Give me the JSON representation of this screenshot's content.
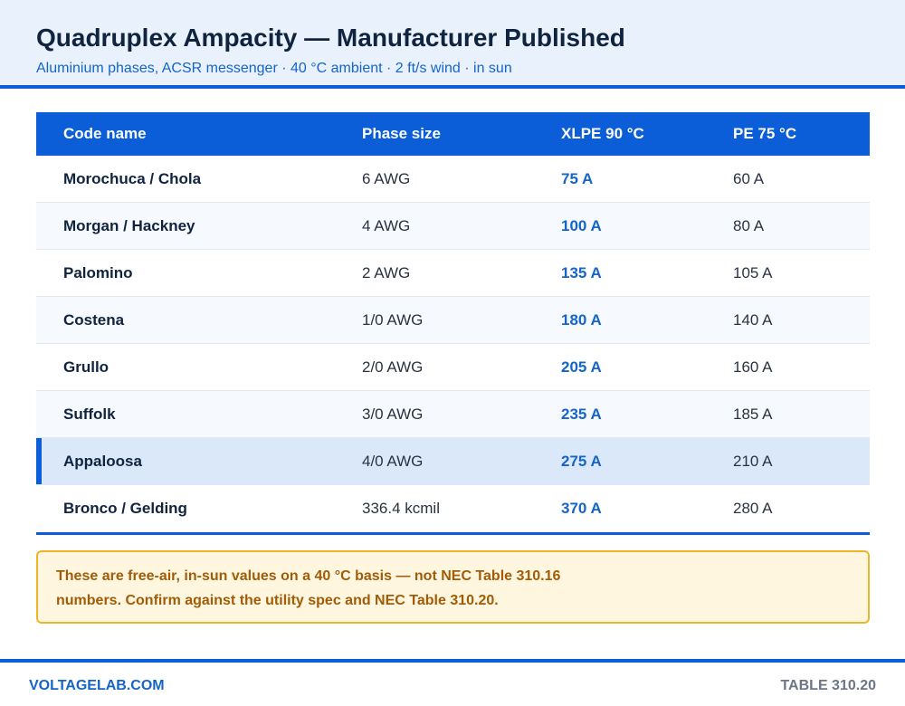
{
  "header": {
    "title": "Quadruplex Ampacity — Manufacturer Published",
    "subtitle": "Aluminium phases, ACSR messenger · 40 °C ambient · 2 ft/s wind · in sun"
  },
  "table": {
    "columns": [
      "Code name",
      "Phase size",
      "XLPE 90 °C",
      "PE 75 °C"
    ],
    "rows": [
      {
        "name": "Morochuca / Chola",
        "size": "6 AWG",
        "xlpe": "75 A",
        "pe": "60 A"
      },
      {
        "name": "Morgan / Hackney",
        "size": "4 AWG",
        "xlpe": "100 A",
        "pe": "80 A"
      },
      {
        "name": "Palomino",
        "size": "2 AWG",
        "xlpe": "135 A",
        "pe": "105 A"
      },
      {
        "name": "Costena",
        "size": "1/0 AWG",
        "xlpe": "180 A",
        "pe": "140 A"
      },
      {
        "name": "Grullo",
        "size": "2/0 AWG",
        "xlpe": "205 A",
        "pe": "160 A"
      },
      {
        "name": "Suffolk",
        "size": "3/0 AWG",
        "xlpe": "235 A",
        "pe": "185 A"
      },
      {
        "name": "Appaloosa",
        "size": "4/0 AWG",
        "xlpe": "275 A",
        "pe": "210 A"
      },
      {
        "name": "Bronco / Gelding",
        "size": "336.4 kcmil",
        "xlpe": "370 A",
        "pe": "280 A"
      }
    ]
  },
  "note": {
    "text": "These are free-air, in-sun values on a 40 °C basis — not NEC Table 310.16 numbers. Confirm against the utility spec and NEC Table 310.20."
  },
  "footer": {
    "brand": "VOLTAGELAB.COM",
    "reference": "TABLE 310.20"
  },
  "colors": {
    "accent": "#0b5ed7",
    "highlight_row": "#dbe8fa",
    "note_border": "#f0b429",
    "note_text": "#a15c07"
  }
}
